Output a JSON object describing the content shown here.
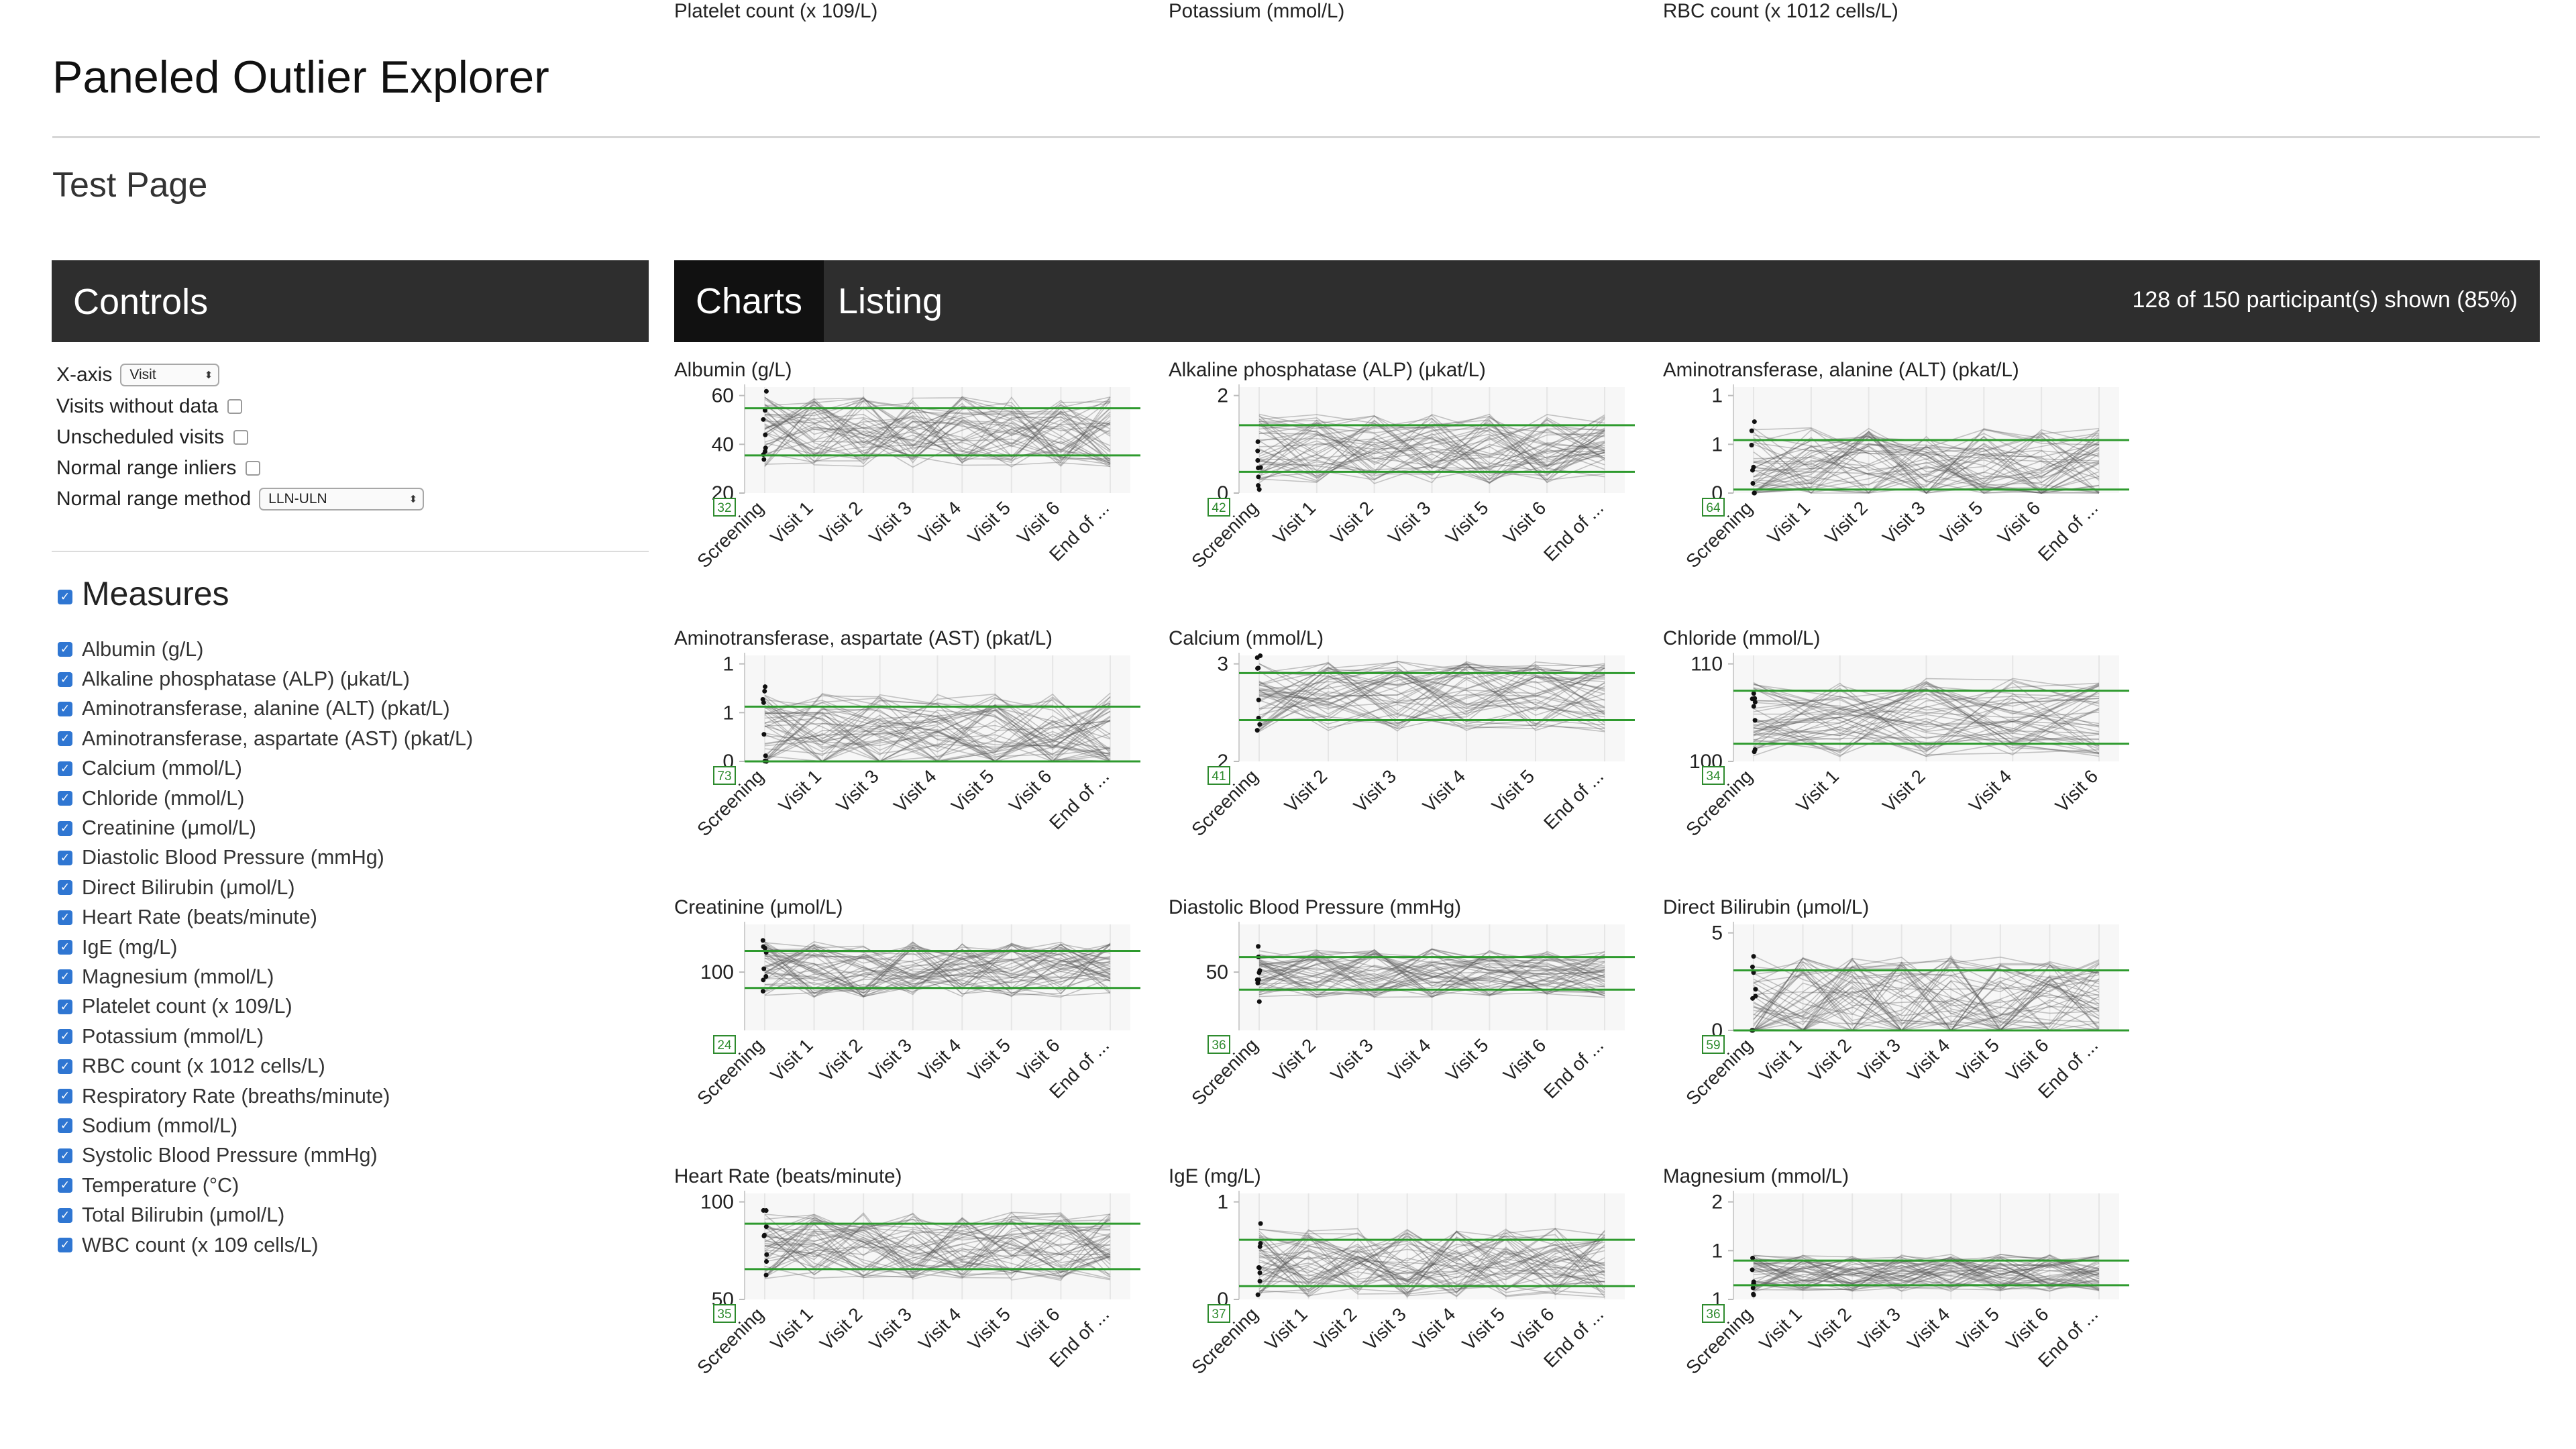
{
  "app": {
    "title": "Paneled Outlier Explorer",
    "subtitle": "Test Page"
  },
  "controls": {
    "header": "Controls",
    "xaxis": {
      "label": "X-axis",
      "value": "Visit"
    },
    "visits_without_data": {
      "label": "Visits without data",
      "checked": false
    },
    "unscheduled_visits": {
      "label": "Unscheduled visits",
      "checked": false
    },
    "normal_range_inliers": {
      "label": "Normal range inliers",
      "checked": false
    },
    "normal_range_method": {
      "label": "Normal range method",
      "value": "LLN-ULN"
    }
  },
  "measures": {
    "heading": "Measures",
    "items": [
      "Albumin (g/L)",
      "Alkaline phosphatase (ALP) (μkat/L)",
      "Aminotransferase, alanine (ALT) (pkat/L)",
      "Aminotransferase, aspartate (AST) (pkat/L)",
      "Calcium (mmol/L)",
      "Chloride (mmol/L)",
      "Creatinine (μmol/L)",
      "Diastolic Blood Pressure (mmHg)",
      "Direct Bilirubin (μmol/L)",
      "Heart Rate (beats/minute)",
      "IgE (mg/L)",
      "Magnesium (mmol/L)",
      "Platelet count (x 109/L)",
      "Potassium (mmol/L)",
      "RBC count (x 1012 cells/L)",
      "Respiratory Rate (breaths/minute)",
      "Sodium (mmol/L)",
      "Systolic Blood Pressure (mmHg)",
      "Temperature (°C)",
      "Total Bilirubin (μmol/L)",
      "WBC count (x 109 cells/L)"
    ]
  },
  "tabs": {
    "charts": "Charts",
    "listing": "Listing",
    "active": "Charts"
  },
  "status": {
    "participants_shown": "128 of 150 participant(s) shown (85%)"
  },
  "colors": {
    "header_bg": "#2e2e2e",
    "active_tab_bg": "#111111",
    "normal_range": "#2e9a2e",
    "checkbox": "#2f76d2"
  },
  "chart_data": [
    {
      "type": "line",
      "title": "Albumin (g/L)",
      "ylim": [
        20,
        65
      ],
      "yticks": [
        "20",
        "40",
        "60"
      ],
      "normal_range": [
        36,
        56
      ],
      "count_label": "32",
      "x": [
        "Screening",
        "Visit 1",
        "Visit 2",
        "Visit 3",
        "Visit 4",
        "Visit 5",
        "Visit 6",
        "End of ..."
      ]
    },
    {
      "type": "line",
      "title": "Alkaline phosphatase (ALP) (μkat/L)",
      "ylim": [
        0,
        2.5
      ],
      "yticks": [
        "0",
        "2"
      ],
      "normal_range": [
        0.5,
        1.6
      ],
      "count_label": "42",
      "x": [
        "Screening",
        "Visit 1",
        "Visit 2",
        "Visit 3",
        "Visit 5",
        "Visit 6",
        "End of ..."
      ]
    },
    {
      "type": "line",
      "title": "Aminotransferase, alanine (ALT) (pkat/L)",
      "ylim": [
        0,
        1.2
      ],
      "yticks": [
        "0",
        "1",
        "1"
      ],
      "normal_range": [
        0.04,
        0.6
      ],
      "count_label": "64",
      "x": [
        "Screening",
        "Visit 1",
        "Visit 2",
        "Visit 3",
        "Visit 5",
        "Visit 6",
        "End of ..."
      ]
    },
    {
      "type": "line",
      "title": "Aminotransferase, aspartate (AST) (pkat/L)",
      "ylim": [
        0,
        1.2
      ],
      "yticks": [
        "0",
        "1",
        "1"
      ],
      "normal_range": [
        0,
        0.62
      ],
      "count_label": "73",
      "x": [
        "Screening",
        "Visit 1",
        "Visit 3",
        "Visit 4",
        "Visit 5",
        "Visit 6",
        "End of ..."
      ]
    },
    {
      "type": "line",
      "title": "Calcium (mmol/L)",
      "ylim": [
        1.7,
        3.5
      ],
      "yticks": [
        "2",
        "3"
      ],
      "normal_range": [
        2.4,
        3.2
      ],
      "count_label": "41",
      "x": [
        "Screening",
        "Visit 2",
        "Visit 3",
        "Visit 4",
        "Visit 5",
        "End of ..."
      ]
    },
    {
      "type": "line",
      "title": "Chloride (mmol/L)",
      "ylim": [
        94,
        112
      ],
      "yticks": [
        "100",
        "110"
      ],
      "normal_range": [
        97,
        106
      ],
      "count_label": "34",
      "x": [
        "Screening",
        "Visit 1",
        "Visit 2",
        "Visit 4",
        "Visit 6"
      ]
    },
    {
      "type": "line",
      "title": "Creatinine (μmol/L)",
      "ylim": [
        40,
        140
      ],
      "yticks": [
        "100"
      ],
      "normal_range": [
        80,
        115
      ],
      "count_label": "24",
      "x": [
        "Screening",
        "Visit 1",
        "Visit 2",
        "Visit 3",
        "Visit 4",
        "Visit 5",
        "Visit 6",
        "End of ..."
      ]
    },
    {
      "type": "line",
      "title": "Diastolic Blood Pressure (mmHg)",
      "ylim": [
        35,
        100
      ],
      "yticks": [
        "50"
      ],
      "normal_range": [
        60,
        80
      ],
      "count_label": "36",
      "x": [
        "Screening",
        "Visit 2",
        "Visit 3",
        "Visit 4",
        "Visit 5",
        "Visit 6",
        "End of ..."
      ]
    },
    {
      "type": "line",
      "title": "Direct Bilirubin (μmol/L)",
      "ylim": [
        0,
        9
      ],
      "yticks": [
        "0",
        "5"
      ],
      "normal_range": [
        0,
        5.1
      ],
      "count_label": "59",
      "x": [
        "Screening",
        "Visit 1",
        "Visit 2",
        "Visit 3",
        "Visit 4",
        "Visit 5",
        "Visit 6",
        "End of ..."
      ]
    },
    {
      "type": "line",
      "title": "Heart Rate (beats/minute)",
      "ylim": [
        30,
        100
      ],
      "yticks": [
        "50",
        "100"
      ],
      "normal_range": [
        50,
        80
      ],
      "count_label": "35",
      "x": [
        "Screening",
        "Visit 1",
        "Visit 2",
        "Visit 3",
        "Visit 4",
        "Visit 5",
        "Visit 6",
        "End of ..."
      ]
    },
    {
      "type": "line",
      "title": "IgE (mg/L)",
      "ylim": [
        0,
        1.6
      ],
      "yticks": [
        "0",
        "1"
      ],
      "normal_range": [
        0.2,
        0.9
      ],
      "count_label": "37",
      "x": [
        "Screening",
        "Visit 1",
        "Visit 2",
        "Visit 3",
        "Visit 4",
        "Visit 5",
        "Visit 6",
        "End of ..."
      ]
    },
    {
      "type": "line",
      "title": "Magnesium (mmol/L)",
      "ylim": [
        0.5,
        2
      ],
      "yticks": [
        "1",
        "1",
        "2"
      ],
      "normal_range": [
        0.7,
        1.05
      ],
      "count_label": "36",
      "x": [
        "Screening",
        "Visit 1",
        "Visit 2",
        "Visit 3",
        "Visit 4",
        "Visit 5",
        "Visit 6",
        "End of ..."
      ]
    },
    {
      "type": "line",
      "title": "Platelet count (x 109/L)"
    },
    {
      "type": "line",
      "title": "Potassium (mmol/L)"
    },
    {
      "type": "line",
      "title": "RBC count (x 1012 cells/L)"
    }
  ]
}
